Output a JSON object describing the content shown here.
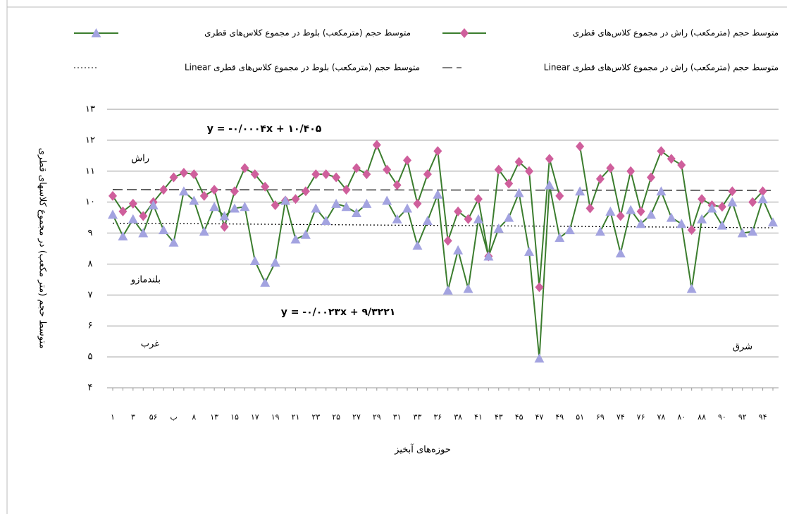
{
  "chart_data": {
    "type": "line",
    "y_axis_label": "متوسط حجم (متر مکعب) در مجموع کلاسهای قطری",
    "x_axis_label": "حوزه‌های آبخیز",
    "categories": [
      "۱",
      null,
      "۳",
      null,
      "۵۶",
      null,
      "ب",
      null,
      "۸",
      null,
      "۱۳",
      null,
      "۱۵",
      null,
      "۱۷",
      null,
      "۱۹",
      null,
      "۲۱",
      null,
      "۲۳",
      null,
      "۲۵",
      null,
      "۲۷",
      null,
      "۲۹",
      null,
      "۳۱",
      null,
      "۳۳",
      null,
      "۳۶",
      null,
      "۳۸",
      null,
      "۴۱",
      null,
      "۴۳",
      null,
      "۴۵",
      null,
      "۴۷",
      null,
      "۴۹",
      null,
      "۵۱",
      null,
      "۶۹",
      null,
      "۷۴",
      null,
      "۷۶",
      null,
      "۷۸",
      null,
      "۸۰",
      null,
      "۸۸",
      null,
      "۹۰",
      null,
      "۹۲",
      null,
      "۹۴",
      null
    ],
    "ylim": [
      4,
      13
    ],
    "yticks": [
      {
        "value": 4,
        "label": "۴"
      },
      {
        "value": 5,
        "label": "۵"
      },
      {
        "value": 6,
        "label": "۶"
      },
      {
        "value": 7,
        "label": "۷"
      },
      {
        "value": 8,
        "label": "۸"
      },
      {
        "value": 9,
        "label": "۹"
      },
      {
        "value": 10,
        "label": "۱۰"
      },
      {
        "value": 11,
        "label": "۱۱"
      },
      {
        "value": 12,
        "label": "۱۲"
      },
      {
        "value": 13,
        "label": "۱۳"
      }
    ],
    "grid": true,
    "line_color": "#3b7d2e",
    "series": [
      {
        "name": "متوسط حجم (مترمکعب) راش در مجموع کلاس‌های قطری",
        "marker": "diamond",
        "color": "#cf5f9c",
        "values": [
          10.2,
          9.7,
          9.95,
          9.55,
          10.0,
          10.4,
          10.8,
          10.95,
          10.9,
          10.2,
          10.4,
          9.2,
          10.35,
          11.1,
          10.9,
          10.5,
          9.9,
          10.05,
          10.1,
          10.35,
          10.9,
          10.9,
          10.8,
          10.4,
          11.1,
          10.9,
          11.85,
          11.05,
          10.55,
          11.35,
          9.95,
          10.9,
          11.65,
          8.75,
          9.7,
          9.45,
          10.1,
          8.25,
          11.05,
          10.6,
          11.3,
          11.0,
          7.25,
          11.4,
          10.2,
          null,
          11.8,
          9.8,
          10.75,
          11.1,
          9.55,
          11.0,
          9.7,
          10.8,
          11.65,
          11.4,
          11.2,
          9.1,
          10.1,
          9.9,
          9.85,
          10.35,
          null,
          10.0,
          10.35,
          null
        ]
      },
      {
        "name": "متوسط حجم (مترمکعب) بلوط در مجموع کلاس‌های قطری",
        "marker": "triangle",
        "color": "#a3a3e0",
        "values": [
          9.6,
          8.9,
          9.45,
          9.0,
          9.9,
          9.1,
          8.7,
          10.35,
          10.05,
          9.05,
          9.85,
          9.55,
          9.8,
          9.85,
          8.1,
          7.4,
          8.05,
          10.05,
          8.8,
          8.95,
          9.8,
          9.4,
          9.95,
          9.85,
          9.65,
          9.95,
          null,
          10.05,
          9.45,
          9.8,
          8.6,
          9.4,
          10.25,
          7.15,
          8.45,
          7.2,
          9.45,
          8.25,
          9.15,
          9.5,
          10.3,
          8.4,
          4.95,
          10.55,
          8.85,
          9.1,
          10.35,
          null,
          9.05,
          9.7,
          8.35,
          9.75,
          9.3,
          9.6,
          10.35,
          9.5,
          9.3,
          7.2,
          9.45,
          9.8,
          9.25,
          10.0,
          9.0,
          9.05,
          10.1,
          9.35
        ]
      }
    ],
    "trendlines": [
      {
        "name": "Linear متوسط حجم (مترمکعب) راش در مجموع کلاس‌های قطری",
        "style": "dashed",
        "color": "#000000",
        "slope": -0.0004,
        "intercept": 10.405,
        "equation": "y = -۰/۰۰۰۴x + ۱۰/۴۰۵"
      },
      {
        "name": "Linear متوسط حجم (مترمکعب) بلوط در مجموع کلاس‌های قطری",
        "style": "dotted",
        "color": "#000000",
        "slope": -0.0023,
        "intercept": 9.3221,
        "equation": "y = -۰/۰۰۲۳x + ۹/۳۲۲۱"
      }
    ],
    "annotations": [
      "راش",
      "بلندمازو",
      "غرب",
      "شرق"
    ]
  }
}
